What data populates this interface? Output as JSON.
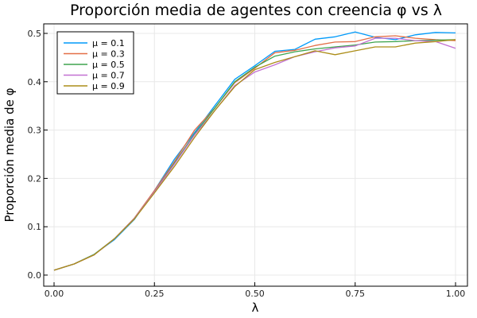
{
  "chart_data": {
    "type": "line",
    "title": "Proporción media de agentes con creencia φ vs λ",
    "xlabel": "λ",
    "ylabel": "Proporción media de φ",
    "xlim": [
      0,
      1
    ],
    "ylim": [
      0,
      0.5
    ],
    "x_ticks": [
      "0.00",
      "0.25",
      "0.50",
      "0.75",
      "1.00"
    ],
    "y_ticks": [
      "0.0",
      "0.1",
      "0.2",
      "0.3",
      "0.4",
      "0.5"
    ],
    "grid": true,
    "legend_position": "top-left",
    "x": [
      0.0,
      0.05,
      0.1,
      0.15,
      0.2,
      0.25,
      0.3,
      0.35,
      0.4,
      0.45,
      0.5,
      0.55,
      0.6,
      0.65,
      0.7,
      0.75,
      0.8,
      0.85,
      0.9,
      0.95,
      1.0
    ],
    "series": [
      {
        "name": "μ = 0.1",
        "color": "#009AFA",
        "values": [
          0.01,
          0.023,
          0.043,
          0.073,
          0.115,
          0.175,
          0.24,
          0.295,
          0.35,
          0.405,
          0.433,
          0.463,
          0.467,
          0.488,
          0.493,
          0.503,
          0.492,
          0.487,
          0.497,
          0.502,
          0.501
        ]
      },
      {
        "name": "μ = 0.3",
        "color": "#E36F47",
        "values": [
          0.01,
          0.023,
          0.042,
          0.075,
          0.118,
          0.175,
          0.235,
          0.3,
          0.345,
          0.398,
          0.428,
          0.46,
          0.465,
          0.475,
          0.482,
          0.483,
          0.493,
          0.495,
          0.49,
          0.487,
          0.485
        ]
      },
      {
        "name": "μ = 0.5",
        "color": "#3EA44E",
        "values": [
          0.01,
          0.023,
          0.043,
          0.075,
          0.117,
          0.172,
          0.232,
          0.292,
          0.345,
          0.4,
          0.43,
          0.453,
          0.462,
          0.468,
          0.472,
          0.476,
          0.482,
          0.483,
          0.485,
          0.486,
          0.487
        ]
      },
      {
        "name": "μ = 0.7",
        "color": "#C271D2",
        "values": [
          0.01,
          0.023,
          0.042,
          0.075,
          0.117,
          0.172,
          0.23,
          0.29,
          0.34,
          0.392,
          0.42,
          0.435,
          0.452,
          0.462,
          0.47,
          0.474,
          0.49,
          0.49,
          0.485,
          0.483,
          0.469
        ]
      },
      {
        "name": "μ = 0.9",
        "color": "#AC8D18",
        "values": [
          0.01,
          0.023,
          0.042,
          0.075,
          0.116,
          0.17,
          0.225,
          0.285,
          0.34,
          0.39,
          0.425,
          0.44,
          0.452,
          0.464,
          0.456,
          0.464,
          0.472,
          0.472,
          0.48,
          0.483,
          0.487
        ]
      }
    ]
  }
}
